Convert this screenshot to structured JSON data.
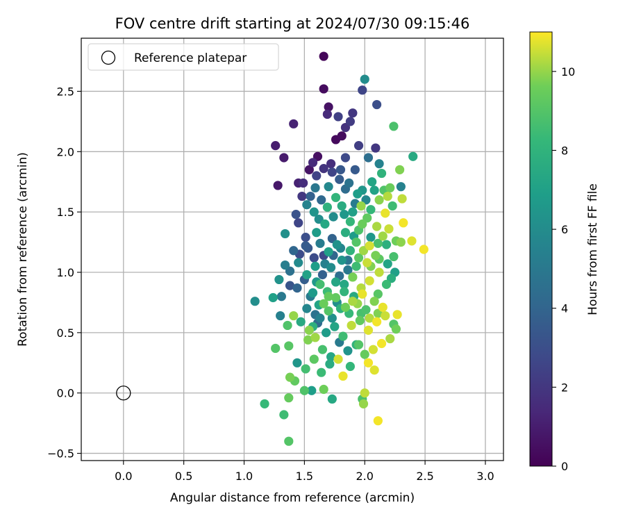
{
  "chart_data": {
    "type": "scatter",
    "title": "FOV centre drift starting at 2024/07/30 09:15:46",
    "xlabel": "Angular distance from reference (arcmin)",
    "ylabel": "Rotation from reference (arcmin)",
    "xlim": [
      -0.35,
      3.15
    ],
    "ylim": [
      -0.56,
      2.94
    ],
    "xticks": [
      "0.0",
      "0.5",
      "1.0",
      "1.5",
      "2.0",
      "2.5",
      "3.0"
    ],
    "yticks": [
      "−0.5",
      "0.0",
      "0.5",
      "1.0",
      "1.5",
      "2.0",
      "2.5"
    ],
    "grid": true,
    "colormap": "viridis",
    "colorbar": {
      "label": "Hours from first FF file",
      "range": [
        0,
        11
      ],
      "ticks": [
        "0",
        "2",
        "4",
        "6",
        "8",
        "10"
      ]
    },
    "legend": {
      "position": "top-left",
      "entries": [
        {
          "label": "Reference platepar",
          "marker": "open-circle"
        }
      ]
    },
    "reference_point": {
      "x": 0.0,
      "y": 0.0
    },
    "points": [
      {
        "x": 1.66,
        "y": 2.79,
        "h": 0.2
      },
      {
        "x": 1.66,
        "y": 2.52,
        "h": 0.4
      },
      {
        "x": 1.7,
        "y": 2.37,
        "h": 0.6
      },
      {
        "x": 1.61,
        "y": 1.96,
        "h": 0.5
      },
      {
        "x": 1.41,
        "y": 2.23,
        "h": 1.2
      },
      {
        "x": 1.26,
        "y": 2.05,
        "h": 1.0
      },
      {
        "x": 1.33,
        "y": 1.95,
        "h": 0.9
      },
      {
        "x": 1.28,
        "y": 1.72,
        "h": 0.8
      },
      {
        "x": 1.54,
        "y": 1.85,
        "h": 0.7
      },
      {
        "x": 1.76,
        "y": 2.1,
        "h": 0.3
      },
      {
        "x": 1.81,
        "y": 2.13,
        "h": 0.4
      },
      {
        "x": 1.88,
        "y": 2.25,
        "h": 2.2
      },
      {
        "x": 1.98,
        "y": 2.51,
        "h": 2.6
      },
      {
        "x": 2.1,
        "y": 2.39,
        "h": 3.0
      },
      {
        "x": 1.9,
        "y": 2.32,
        "h": 2.0
      },
      {
        "x": 1.78,
        "y": 2.29,
        "h": 2.4
      },
      {
        "x": 1.69,
        "y": 2.31,
        "h": 1.5
      },
      {
        "x": 1.84,
        "y": 2.2,
        "h": 1.8
      },
      {
        "x": 2.0,
        "y": 2.6,
        "h": 6.0
      },
      {
        "x": 2.09,
        "y": 2.03,
        "h": 2.0
      },
      {
        "x": 1.95,
        "y": 2.05,
        "h": 2.3
      },
      {
        "x": 1.57,
        "y": 1.91,
        "h": 1.5
      },
      {
        "x": 1.49,
        "y": 1.74,
        "h": 1.6
      },
      {
        "x": 1.45,
        "y": 1.74,
        "h": 1.2
      },
      {
        "x": 1.48,
        "y": 1.63,
        "h": 2.0
      },
      {
        "x": 1.6,
        "y": 1.8,
        "h": 2.5
      },
      {
        "x": 1.72,
        "y": 1.9,
        "h": 1.7
      },
      {
        "x": 1.84,
        "y": 1.95,
        "h": 2.8
      },
      {
        "x": 1.92,
        "y": 1.85,
        "h": 3.5
      },
      {
        "x": 2.03,
        "y": 1.95,
        "h": 4.5
      },
      {
        "x": 2.12,
        "y": 1.9,
        "h": 5.5
      },
      {
        "x": 2.24,
        "y": 2.21,
        "h": 8.8
      },
      {
        "x": 2.4,
        "y": 1.96,
        "h": 7.5
      },
      {
        "x": 2.29,
        "y": 1.85,
        "h": 9.8
      },
      {
        "x": 2.3,
        "y": 1.71,
        "h": 5.5
      },
      {
        "x": 2.31,
        "y": 1.61,
        "h": 10.4
      },
      {
        "x": 2.23,
        "y": 1.55,
        "h": 8.5
      },
      {
        "x": 2.21,
        "y": 1.7,
        "h": 9.5
      },
      {
        "x": 2.14,
        "y": 1.82,
        "h": 8.0
      },
      {
        "x": 2.06,
        "y": 1.75,
        "h": 7.2
      },
      {
        "x": 1.98,
        "y": 1.68,
        "h": 6.5
      },
      {
        "x": 1.92,
        "y": 1.57,
        "h": 5.2
      },
      {
        "x": 1.84,
        "y": 1.69,
        "h": 4.4
      },
      {
        "x": 1.79,
        "y": 1.77,
        "h": 3.6
      },
      {
        "x": 1.7,
        "y": 1.71,
        "h": 5.8
      },
      {
        "x": 1.64,
        "y": 1.6,
        "h": 4.2
      },
      {
        "x": 1.58,
        "y": 1.5,
        "h": 6.4
      },
      {
        "x": 1.55,
        "y": 1.63,
        "h": 3.8
      },
      {
        "x": 1.43,
        "y": 1.48,
        "h": 3.2
      },
      {
        "x": 1.45,
        "y": 1.41,
        "h": 2.6
      },
      {
        "x": 1.51,
        "y": 1.29,
        "h": 3.0
      },
      {
        "x": 1.34,
        "y": 1.32,
        "h": 6.2
      },
      {
        "x": 1.41,
        "y": 1.18,
        "h": 4.1
      },
      {
        "x": 1.46,
        "y": 1.15,
        "h": 2.9
      },
      {
        "x": 1.53,
        "y": 1.2,
        "h": 3.4
      },
      {
        "x": 1.6,
        "y": 1.33,
        "h": 6.8
      },
      {
        "x": 1.67,
        "y": 1.4,
        "h": 7.4
      },
      {
        "x": 1.74,
        "y": 1.46,
        "h": 6.0
      },
      {
        "x": 1.81,
        "y": 1.55,
        "h": 7.6
      },
      {
        "x": 1.88,
        "y": 1.42,
        "h": 8.2
      },
      {
        "x": 1.95,
        "y": 1.35,
        "h": 8.9
      },
      {
        "x": 2.02,
        "y": 1.45,
        "h": 9.3
      },
      {
        "x": 2.1,
        "y": 1.38,
        "h": 10.2
      },
      {
        "x": 2.17,
        "y": 1.49,
        "h": 10.8
      },
      {
        "x": 2.2,
        "y": 1.36,
        "h": 10.5
      },
      {
        "x": 2.26,
        "y": 1.26,
        "h": 9.6
      },
      {
        "x": 2.32,
        "y": 1.41,
        "h": 10.9
      },
      {
        "x": 2.39,
        "y": 1.26,
        "h": 10.7
      },
      {
        "x": 2.49,
        "y": 1.19,
        "h": 10.9
      },
      {
        "x": 2.3,
        "y": 1.25,
        "h": 9.9
      },
      {
        "x": 2.24,
        "y": 1.13,
        "h": 8.7
      },
      {
        "x": 2.18,
        "y": 1.23,
        "h": 7.8
      },
      {
        "x": 2.12,
        "y": 1.11,
        "h": 9.2
      },
      {
        "x": 2.05,
        "y": 1.29,
        "h": 6.6
      },
      {
        "x": 1.99,
        "y": 1.18,
        "h": 10.1
      },
      {
        "x": 1.93,
        "y": 1.25,
        "h": 9.0
      },
      {
        "x": 1.86,
        "y": 1.1,
        "h": 4.8
      },
      {
        "x": 1.8,
        "y": 1.2,
        "h": 5.6
      },
      {
        "x": 1.73,
        "y": 1.28,
        "h": 3.9
      },
      {
        "x": 1.66,
        "y": 1.14,
        "h": 2.7
      },
      {
        "x": 1.59,
        "y": 1.05,
        "h": 6.9
      },
      {
        "x": 1.52,
        "y": 0.98,
        "h": 7.1
      },
      {
        "x": 1.45,
        "y": 1.08,
        "h": 5.9
      },
      {
        "x": 1.38,
        "y": 1.01,
        "h": 4.6
      },
      {
        "x": 1.34,
        "y": 1.06,
        "h": 5.3
      },
      {
        "x": 1.29,
        "y": 0.94,
        "h": 6.3
      },
      {
        "x": 1.31,
        "y": 0.8,
        "h": 5.0
      },
      {
        "x": 1.24,
        "y": 0.79,
        "h": 7.0
      },
      {
        "x": 1.09,
        "y": 0.76,
        "h": 6.1
      },
      {
        "x": 1.3,
        "y": 0.64,
        "h": 5.4
      },
      {
        "x": 1.38,
        "y": 0.89,
        "h": 3.3
      },
      {
        "x": 1.44,
        "y": 0.87,
        "h": 4.0
      },
      {
        "x": 1.5,
        "y": 0.94,
        "h": 3.7
      },
      {
        "x": 1.57,
        "y": 0.83,
        "h": 6.7
      },
      {
        "x": 1.63,
        "y": 0.9,
        "h": 8.6
      },
      {
        "x": 1.7,
        "y": 0.8,
        "h": 9.4
      },
      {
        "x": 1.76,
        "y": 0.92,
        "h": 7.3
      },
      {
        "x": 1.83,
        "y": 0.84,
        "h": 8.1
      },
      {
        "x": 1.9,
        "y": 0.96,
        "h": 9.7
      },
      {
        "x": 1.97,
        "y": 0.87,
        "h": 10.3
      },
      {
        "x": 2.04,
        "y": 0.93,
        "h": 10.6
      },
      {
        "x": 2.11,
        "y": 0.82,
        "h": 9.1
      },
      {
        "x": 2.18,
        "y": 0.9,
        "h": 8.4
      },
      {
        "x": 2.22,
        "y": 0.95,
        "h": 7.7
      },
      {
        "x": 2.25,
        "y": 1.0,
        "h": 7.0
      },
      {
        "x": 2.15,
        "y": 0.71,
        "h": 10.8
      },
      {
        "x": 2.08,
        "y": 0.76,
        "h": 9.8
      },
      {
        "x": 2.01,
        "y": 0.69,
        "h": 8.8
      },
      {
        "x": 1.94,
        "y": 0.74,
        "h": 10.0
      },
      {
        "x": 1.87,
        "y": 0.66,
        "h": 8.3
      },
      {
        "x": 1.8,
        "y": 0.7,
        "h": 7.9
      },
      {
        "x": 1.73,
        "y": 0.62,
        "h": 6.2
      },
      {
        "x": 1.66,
        "y": 0.74,
        "h": 9.5
      },
      {
        "x": 1.59,
        "y": 0.65,
        "h": 4.7
      },
      {
        "x": 1.52,
        "y": 0.7,
        "h": 5.7
      },
      {
        "x": 1.47,
        "y": 0.59,
        "h": 7.5
      },
      {
        "x": 1.41,
        "y": 0.64,
        "h": 10.0
      },
      {
        "x": 1.36,
        "y": 0.56,
        "h": 8.9
      },
      {
        "x": 1.54,
        "y": 0.52,
        "h": 9.9
      },
      {
        "x": 1.61,
        "y": 0.58,
        "h": 4.3
      },
      {
        "x": 1.68,
        "y": 0.5,
        "h": 6.8
      },
      {
        "x": 1.75,
        "y": 0.55,
        "h": 7.2
      },
      {
        "x": 1.82,
        "y": 0.47,
        "h": 8.5
      },
      {
        "x": 1.89,
        "y": 0.56,
        "h": 10.4
      },
      {
        "x": 1.96,
        "y": 0.6,
        "h": 9.3
      },
      {
        "x": 2.03,
        "y": 0.52,
        "h": 10.7
      },
      {
        "x": 2.1,
        "y": 0.59,
        "h": 10.9
      },
      {
        "x": 2.17,
        "y": 0.64,
        "h": 10.5
      },
      {
        "x": 2.24,
        "y": 0.57,
        "h": 9.0
      },
      {
        "x": 2.27,
        "y": 0.65,
        "h": 10.8
      },
      {
        "x": 2.26,
        "y": 0.53,
        "h": 9.6
      },
      {
        "x": 2.21,
        "y": 0.45,
        "h": 10.2
      },
      {
        "x": 2.14,
        "y": 0.41,
        "h": 10.9
      },
      {
        "x": 2.07,
        "y": 0.36,
        "h": 10.6
      },
      {
        "x": 2.0,
        "y": 0.32,
        "h": 9.4
      },
      {
        "x": 1.93,
        "y": 0.4,
        "h": 8.0
      },
      {
        "x": 1.86,
        "y": 0.35,
        "h": 6.4
      },
      {
        "x": 1.79,
        "y": 0.42,
        "h": 5.1
      },
      {
        "x": 1.72,
        "y": 0.3,
        "h": 7.3
      },
      {
        "x": 1.65,
        "y": 0.36,
        "h": 8.7
      },
      {
        "x": 1.58,
        "y": 0.28,
        "h": 9.2
      },
      {
        "x": 1.51,
        "y": 0.2,
        "h": 8.6
      },
      {
        "x": 1.44,
        "y": 0.25,
        "h": 6.5
      },
      {
        "x": 1.37,
        "y": 0.39,
        "h": 9.1
      },
      {
        "x": 1.26,
        "y": 0.37,
        "h": 9.0
      },
      {
        "x": 1.38,
        "y": 0.13,
        "h": 9.7
      },
      {
        "x": 1.42,
        "y": 0.1,
        "h": 9.3
      },
      {
        "x": 1.5,
        "y": 0.02,
        "h": 8.9
      },
      {
        "x": 1.56,
        "y": 0.02,
        "h": 6.9
      },
      {
        "x": 1.64,
        "y": 0.17,
        "h": 8.4
      },
      {
        "x": 1.71,
        "y": 0.24,
        "h": 7.6
      },
      {
        "x": 1.78,
        "y": 0.28,
        "h": 10.6
      },
      {
        "x": 1.82,
        "y": 0.14,
        "h": 10.8
      },
      {
        "x": 1.88,
        "y": 0.22,
        "h": 8.2
      },
      {
        "x": 1.95,
        "y": 0.4,
        "h": 9.0
      },
      {
        "x": 2.03,
        "y": 0.25,
        "h": 10.9
      },
      {
        "x": 2.08,
        "y": 0.19,
        "h": 10.7
      },
      {
        "x": 1.98,
        "y": -0.05,
        "h": 8.8
      },
      {
        "x": 1.99,
        "y": -0.09,
        "h": 10.0
      },
      {
        "x": 2.0,
        "y": 0.0,
        "h": 10.4
      },
      {
        "x": 2.11,
        "y": -0.23,
        "h": 10.9
      },
      {
        "x": 1.73,
        "y": -0.05,
        "h": 7.4
      },
      {
        "x": 1.66,
        "y": 0.03,
        "h": 9.6
      },
      {
        "x": 1.37,
        "y": -0.04,
        "h": 9.4
      },
      {
        "x": 1.17,
        "y": -0.09,
        "h": 8.3
      },
      {
        "x": 1.33,
        "y": -0.18,
        "h": 8.5
      },
      {
        "x": 1.37,
        "y": -0.4,
        "h": 9.0
      },
      {
        "x": 1.53,
        "y": 0.44,
        "h": 9.8
      },
      {
        "x": 1.59,
        "y": 0.46,
        "h": 10.1
      },
      {
        "x": 1.57,
        "y": 0.55,
        "h": 7.8
      },
      {
        "x": 1.63,
        "y": 0.62,
        "h": 5.5
      },
      {
        "x": 1.7,
        "y": 0.68,
        "h": 9.0
      },
      {
        "x": 1.77,
        "y": 0.75,
        "h": 6.1
      },
      {
        "x": 1.84,
        "y": 0.71,
        "h": 9.6
      },
      {
        "x": 1.91,
        "y": 0.8,
        "h": 7.5
      },
      {
        "x": 1.98,
        "y": 0.82,
        "h": 10.8
      },
      {
        "x": 2.05,
        "y": 1.05,
        "h": 9.8
      },
      {
        "x": 2.12,
        "y": 1.0,
        "h": 10.4
      },
      {
        "x": 2.19,
        "y": 1.07,
        "h": 7.2
      },
      {
        "x": 1.93,
        "y": 1.05,
        "h": 8.5
      },
      {
        "x": 1.86,
        "y": 1.02,
        "h": 5.0
      },
      {
        "x": 1.79,
        "y": 0.97,
        "h": 4.5
      },
      {
        "x": 1.72,
        "y": 1.04,
        "h": 6.0
      },
      {
        "x": 1.65,
        "y": 0.98,
        "h": 3.8
      },
      {
        "x": 1.58,
        "y": 1.12,
        "h": 2.9
      },
      {
        "x": 1.51,
        "y": 1.22,
        "h": 3.6
      },
      {
        "x": 1.63,
        "y": 1.24,
        "h": 5.2
      },
      {
        "x": 1.7,
        "y": 1.17,
        "h": 7.0
      },
      {
        "x": 1.77,
        "y": 1.23,
        "h": 6.3
      },
      {
        "x": 1.84,
        "y": 1.33,
        "h": 7.7
      },
      {
        "x": 1.91,
        "y": 1.3,
        "h": 6.8
      },
      {
        "x": 1.98,
        "y": 1.4,
        "h": 9.5
      },
      {
        "x": 2.05,
        "y": 1.52,
        "h": 8.2
      },
      {
        "x": 2.12,
        "y": 1.6,
        "h": 9.9
      },
      {
        "x": 2.19,
        "y": 1.63,
        "h": 10.3
      },
      {
        "x": 2.16,
        "y": 1.68,
        "h": 8.9
      },
      {
        "x": 2.08,
        "y": 1.68,
        "h": 7.1
      },
      {
        "x": 2.01,
        "y": 1.6,
        "h": 5.7
      },
      {
        "x": 1.94,
        "y": 1.65,
        "h": 6.9
      },
      {
        "x": 1.87,
        "y": 1.74,
        "h": 4.7
      },
      {
        "x": 1.8,
        "y": 1.85,
        "h": 3.4
      },
      {
        "x": 1.73,
        "y": 1.83,
        "h": 2.6
      },
      {
        "x": 1.66,
        "y": 1.86,
        "h": 1.9
      },
      {
        "x": 1.59,
        "y": 1.7,
        "h": 4.9
      },
      {
        "x": 1.52,
        "y": 1.56,
        "h": 5.5
      },
      {
        "x": 1.62,
        "y": 1.44,
        "h": 6.1
      },
      {
        "x": 1.69,
        "y": 1.54,
        "h": 7.9
      },
      {
        "x": 1.76,
        "y": 1.62,
        "h": 8.1
      },
      {
        "x": 1.83,
        "y": 1.48,
        "h": 6.6
      },
      {
        "x": 1.9,
        "y": 1.5,
        "h": 7.0
      },
      {
        "x": 1.97,
        "y": 1.55,
        "h": 10.0
      },
      {
        "x": 2.04,
        "y": 1.22,
        "h": 10.6
      },
      {
        "x": 2.11,
        "y": 1.24,
        "h": 8.8
      },
      {
        "x": 2.15,
        "y": 1.3,
        "h": 10.1
      },
      {
        "x": 2.09,
        "y": 1.14,
        "h": 9.7
      },
      {
        "x": 2.02,
        "y": 1.08,
        "h": 10.5
      },
      {
        "x": 1.95,
        "y": 1.12,
        "h": 9.2
      },
      {
        "x": 1.88,
        "y": 1.18,
        "h": 8.0
      },
      {
        "x": 1.81,
        "y": 1.1,
        "h": 6.4
      },
      {
        "x": 1.74,
        "y": 1.14,
        "h": 4.1
      },
      {
        "x": 1.67,
        "y": 1.07,
        "h": 5.4
      },
      {
        "x": 1.6,
        "y": 0.92,
        "h": 6.6
      },
      {
        "x": 1.55,
        "y": 0.8,
        "h": 5.1
      },
      {
        "x": 1.62,
        "y": 0.73,
        "h": 7.2
      },
      {
        "x": 1.69,
        "y": 0.84,
        "h": 8.4
      },
      {
        "x": 1.76,
        "y": 0.79,
        "h": 9.3
      },
      {
        "x": 1.83,
        "y": 0.9,
        "h": 7.4
      },
      {
        "x": 1.9,
        "y": 0.76,
        "h": 10.2
      },
      {
        "x": 1.97,
        "y": 0.66,
        "h": 8.7
      },
      {
        "x": 2.04,
        "y": 0.62,
        "h": 10.3
      },
      {
        "x": 2.11,
        "y": 0.66,
        "h": 9.8
      }
    ]
  }
}
